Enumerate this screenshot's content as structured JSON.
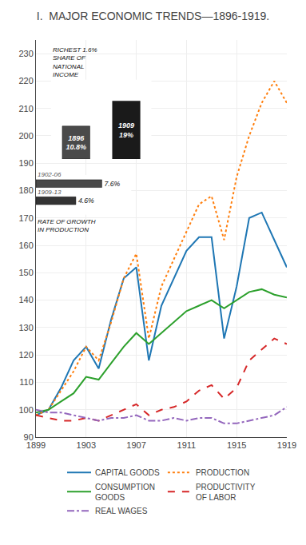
{
  "chart_data": [
    {
      "type": "line",
      "title": "I.  MAJOR ECONOMIC TRENDS—1896-1919.",
      "x": [
        1899,
        1900,
        1901,
        1902,
        1903,
        1904,
        1905,
        1906,
        1907,
        1908,
        1909,
        1910,
        1911,
        1912,
        1913,
        1914,
        1915,
        1916,
        1917,
        1918,
        1919
      ],
      "series": [
        {
          "name": "CAPITAL GOODS",
          "line_style": "solid",
          "values": [
            98,
            100,
            108,
            118,
            123,
            115,
            133,
            148,
            152,
            118,
            138,
            148,
            158,
            163,
            163,
            126,
            145,
            170,
            172,
            162,
            152
          ]
        },
        {
          "name": "PRODUCTION",
          "line_style": "dotted",
          "values": [
            98,
            100,
            107,
            114,
            123,
            118,
            132,
            148,
            157,
            126,
            145,
            155,
            165,
            175,
            178,
            162,
            185,
            200,
            212,
            220,
            212
          ]
        },
        {
          "name": "CONSUMPTION\nGOODS",
          "line_style": "solid",
          "values": [
            99,
            100,
            103,
            106,
            112,
            111,
            117,
            123,
            128,
            124,
            128,
            132,
            136,
            138,
            140,
            137,
            140,
            143,
            144,
            142,
            141
          ]
        },
        {
          "name": "PRODUCTIVITY\nOF LABOR",
          "line_style": "dashed",
          "values": [
            98,
            97,
            96,
            96,
            97,
            96,
            98,
            100,
            102,
            98,
            100,
            101,
            103,
            107,
            109,
            104,
            108,
            118,
            122,
            126,
            124
          ]
        },
        {
          "name": "REAL WAGES",
          "line_style": "dashdot",
          "values": [
            100,
            99,
            99,
            98,
            97,
            96,
            97,
            97,
            98,
            96,
            96,
            97,
            96,
            97,
            97,
            95,
            95,
            96,
            97,
            98,
            101
          ]
        }
      ],
      "xlim": [
        1899,
        1919
      ],
      "xticks": [
        1899,
        1903,
        1907,
        1911,
        1915,
        1919
      ],
      "ylim": [
        90,
        235
      ],
      "yticks": [
        90,
        100,
        110,
        120,
        130,
        140,
        150,
        160,
        170,
        180,
        190,
        200,
        210,
        220,
        230
      ],
      "grid": true,
      "legend": "bottom"
    },
    {
      "type": "bar",
      "title": "RICHEST 1.6%\nSHARE OF\nNATIONAL\nINCOME",
      "categories": [
        "1896",
        "1909"
      ],
      "values": [
        10.8,
        19.0
      ],
      "value_labels": [
        "10.8%",
        "19%"
      ],
      "colors": [
        "#4a4a4a",
        "#1a1a1a"
      ],
      "ylim": [
        0,
        26
      ],
      "data_labels": true,
      "tick_labels": false,
      "grid": false
    },
    {
      "type": "bar",
      "orientation": "horizontal",
      "title": "RATE OF GROWTH\nIN PRODUCTION",
      "categories": [
        "1902-06",
        "1909-13"
      ],
      "values": [
        7.6,
        4.6
      ],
      "value_labels": [
        "7.6%",
        "4.6%"
      ],
      "colors": [
        "#4a4a4a",
        "#333333"
      ],
      "xlim": [
        0,
        11
      ],
      "data_labels": true,
      "tick_labels": false,
      "grid": false
    }
  ]
}
